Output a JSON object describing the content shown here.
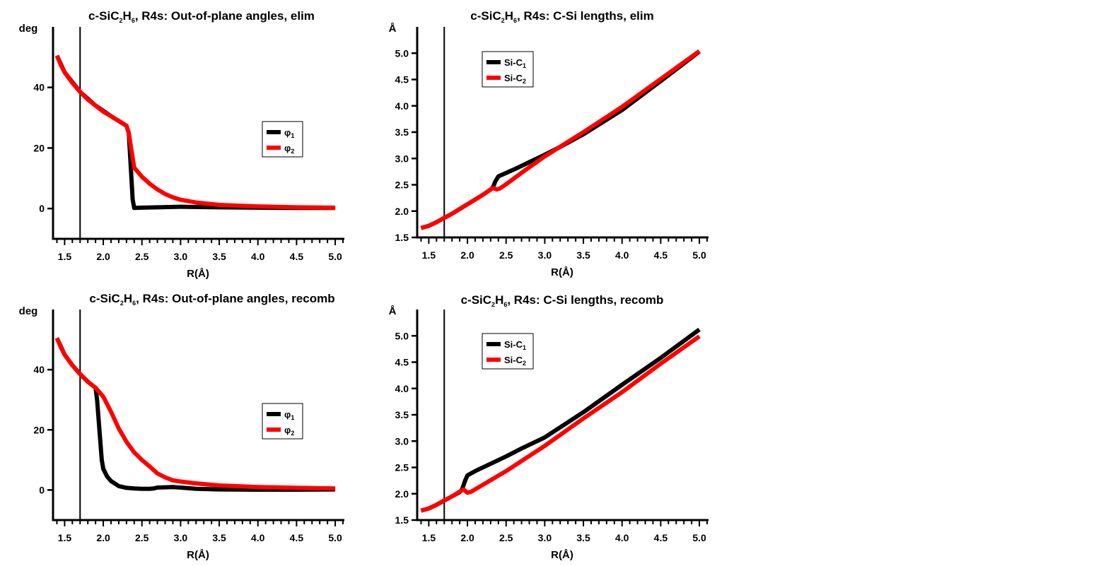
{
  "colors": {
    "series_black": "#000000",
    "series_red": "#ff0000",
    "axis": "#000000"
  },
  "chart_data": [
    {
      "id": "p1",
      "type": "line",
      "title": [
        {
          "t": "c-SiC"
        },
        {
          "t": "2",
          "sub": true
        },
        {
          "t": "H"
        },
        {
          "t": "6",
          "sub": true
        },
        {
          "t": ", R4s: Out-of-plane angles, elim"
        }
      ],
      "xlabel": "R(Å)",
      "ylabel": "deg",
      "xlim": [
        1.35,
        5.1
      ],
      "ylim": [
        -10,
        60
      ],
      "xticks": [
        "1.5",
        "2.0",
        "2.5",
        "3.0",
        "3.5",
        "4.0",
        "4.5",
        "5.0"
      ],
      "yticks": [
        "0",
        "20",
        "40"
      ],
      "vline": 1.7,
      "legend": {
        "placement": "center-right",
        "entries": [
          {
            "t": "φ",
            "sub": "1"
          },
          {
            "t": "φ",
            "sub": "2"
          }
        ]
      },
      "series": [
        {
          "name": "φ1",
          "color": "#000000",
          "x": [
            1.4,
            1.5,
            1.7,
            1.9,
            2.1,
            2.3,
            2.33,
            2.36,
            2.38,
            2.4,
            2.5,
            2.7,
            3.0,
            3.5,
            4.0,
            4.5,
            5.0
          ],
          "y": [
            50.5,
            45,
            38.5,
            34,
            30.5,
            27.3,
            25,
            12,
            3,
            0.2,
            0.3,
            0.4,
            0.6,
            0.4,
            0.3,
            0.2,
            0.2
          ]
        },
        {
          "name": "φ2",
          "color": "#ff0000",
          "x": [
            1.4,
            1.45,
            1.5,
            1.6,
            1.7,
            1.8,
            1.9,
            2.0,
            2.1,
            2.2,
            2.3,
            2.33,
            2.36,
            2.4,
            2.5,
            2.6,
            2.7,
            2.8,
            2.9,
            3.0,
            3.2,
            3.5,
            4.0,
            4.5,
            5.0
          ],
          "y": [
            50.5,
            47.5,
            45,
            41.5,
            38.5,
            36,
            34,
            32,
            30.5,
            29,
            27.3,
            25,
            20,
            13.5,
            10.5,
            8.2,
            6.3,
            4.8,
            3.7,
            2.9,
            2,
            1.2,
            0.7,
            0.4,
            0.3
          ]
        }
      ]
    },
    {
      "id": "p2",
      "type": "line",
      "title": [
        {
          "t": "c-SiC"
        },
        {
          "t": "2",
          "sub": true
        },
        {
          "t": "H"
        },
        {
          "t": "6",
          "sub": true
        },
        {
          "t": ", R4s: C-Si lengths, elim"
        }
      ],
      "xlabel": "R(Å)",
      "ylabel": "Å",
      "xlim": [
        1.35,
        5.1
      ],
      "ylim": [
        1.5,
        5.5
      ],
      "xticks": [
        "1.5",
        "2.0",
        "2.5",
        "3.0",
        "3.5",
        "4.0",
        "4.5",
        "5.0"
      ],
      "yticks": [
        "1.5",
        "2.0",
        "2.5",
        "3.0",
        "3.5",
        "4.0",
        "4.5",
        "5.0"
      ],
      "vline": 1.7,
      "legend": {
        "placement": "top-left",
        "entries": [
          {
            "t": "Si-C",
            "sub": "1"
          },
          {
            "t": "Si-C",
            "sub": "2"
          }
        ]
      },
      "series": [
        {
          "name": "Si-C1",
          "color": "#000000",
          "x": [
            1.4,
            1.5,
            1.6,
            1.7,
            1.8,
            1.9,
            2.0,
            2.1,
            2.2,
            2.3,
            2.33,
            2.36,
            2.4,
            2.6,
            2.8,
            3.0,
            3.2,
            3.5,
            4.0,
            4.5,
            5.0
          ],
          "y": [
            1.68,
            1.72,
            1.79,
            1.87,
            1.95,
            2.04,
            2.13,
            2.22,
            2.31,
            2.41,
            2.45,
            2.56,
            2.66,
            2.79,
            2.93,
            3.07,
            3.22,
            3.46,
            3.92,
            4.47,
            5.03
          ]
        },
        {
          "name": "Si-C2",
          "color": "#ff0000",
          "x": [
            1.4,
            1.5,
            1.6,
            1.7,
            1.8,
            1.9,
            2.0,
            2.1,
            2.2,
            2.3,
            2.33,
            2.38,
            2.42,
            2.5,
            2.75,
            3.0,
            3.5,
            4.0,
            4.5,
            5.0
          ],
          "y": [
            1.68,
            1.72,
            1.79,
            1.87,
            1.95,
            2.04,
            2.13,
            2.22,
            2.31,
            2.41,
            2.44,
            2.41,
            2.43,
            2.51,
            2.78,
            3.04,
            3.5,
            3.98,
            4.51,
            5.04
          ]
        }
      ]
    },
    {
      "id": "p3",
      "type": "line",
      "title": [
        {
          "t": "c-SiC"
        },
        {
          "t": "2",
          "sub": true
        },
        {
          "t": "H"
        },
        {
          "t": "6",
          "sub": true
        },
        {
          "t": ", R4s: Out-of-plane angles, recomb"
        }
      ],
      "xlabel": "R(Å)",
      "ylabel": "deg",
      "xlim": [
        1.35,
        5.1
      ],
      "ylim": [
        -10,
        60
      ],
      "xticks": [
        "1.5",
        "2.0",
        "2.5",
        "3.0",
        "3.5",
        "4.0",
        "4.5",
        "5.0"
      ],
      "yticks": [
        "0",
        "20",
        "40"
      ],
      "vline": 1.7,
      "legend": {
        "placement": "center-right",
        "entries": [
          {
            "t": "φ",
            "sub": "1"
          },
          {
            "t": "φ",
            "sub": "2"
          }
        ]
      },
      "series": [
        {
          "name": "φ1",
          "color": "#000000",
          "x": [
            1.4,
            1.5,
            1.6,
            1.7,
            1.8,
            1.9,
            1.92,
            1.95,
            1.98,
            2.0,
            2.05,
            2.1,
            2.2,
            2.3,
            2.4,
            2.5,
            2.6,
            2.65,
            2.7,
            2.8,
            2.9,
            3.0,
            3.2,
            3.5,
            4.0,
            4.5,
            5.0
          ],
          "y": [
            50.5,
            45,
            41.5,
            38.5,
            36,
            34,
            30,
            20,
            10,
            7,
            4.5,
            3,
            1.3,
            0.7,
            0.5,
            0.4,
            0.4,
            0.5,
            0.8,
            0.9,
            1,
            0.8,
            0.4,
            0.2,
            0.1,
            0.1,
            0.2
          ]
        },
        {
          "name": "φ2",
          "color": "#ff0000",
          "x": [
            1.4,
            1.45,
            1.5,
            1.6,
            1.7,
            1.8,
            1.9,
            2.0,
            2.1,
            2.2,
            2.3,
            2.4,
            2.5,
            2.6,
            2.7,
            2.8,
            2.9,
            3.0,
            3.2,
            3.5,
            4.0,
            4.5,
            5.0
          ],
          "y": [
            50.5,
            47.5,
            45,
            41.5,
            38.5,
            36,
            34,
            31,
            26,
            20.5,
            16,
            12.5,
            10,
            7.8,
            5.5,
            4.2,
            3.2,
            2.8,
            2.2,
            1.5,
            1,
            0.7,
            0.5
          ]
        }
      ]
    },
    {
      "id": "p4",
      "type": "line",
      "title": [
        {
          "t": "c-SiC"
        },
        {
          "t": "2",
          "sub": true
        },
        {
          "t": "H"
        },
        {
          "t": "6",
          "sub": true
        },
        {
          "t": ", R4s: C-Si lengths, recomb"
        }
      ],
      "xlabel": "R(Å)",
      "ylabel": "Å",
      "xlim": [
        1.35,
        5.1
      ],
      "ylim": [
        1.5,
        5.5
      ],
      "xticks": [
        "1.5",
        "2.0",
        "2.5",
        "3.0",
        "3.5",
        "4.0",
        "4.5",
        "5.0"
      ],
      "yticks": [
        "1.5",
        "2.0",
        "2.5",
        "3.0",
        "3.5",
        "4.0",
        "4.5",
        "5.0"
      ],
      "vline": 1.7,
      "legend": {
        "placement": "top-left",
        "entries": [
          {
            "t": "Si-C",
            "sub": "1"
          },
          {
            "t": "Si-C",
            "sub": "2"
          }
        ]
      },
      "series": [
        {
          "name": "Si-C1",
          "color": "#000000",
          "x": [
            1.4,
            1.5,
            1.6,
            1.7,
            1.8,
            1.9,
            1.93,
            1.97,
            2.0,
            2.1,
            2.3,
            2.5,
            2.7,
            3.0,
            3.5,
            4.0,
            4.5,
            5.0
          ],
          "y": [
            1.68,
            1.72,
            1.79,
            1.87,
            1.95,
            2.03,
            2.08,
            2.25,
            2.35,
            2.43,
            2.57,
            2.71,
            2.86,
            3.07,
            3.55,
            4.07,
            4.58,
            5.12
          ]
        },
        {
          "name": "Si-C2",
          "color": "#ff0000",
          "x": [
            1.4,
            1.5,
            1.6,
            1.7,
            1.8,
            1.9,
            1.95,
            2.0,
            2.05,
            2.2,
            2.5,
            3.0,
            3.5,
            4.0,
            4.5,
            5.0
          ],
          "y": [
            1.68,
            1.72,
            1.79,
            1.87,
            1.95,
            2.04,
            2.08,
            2.02,
            2.04,
            2.17,
            2.43,
            2.91,
            3.43,
            3.93,
            4.47,
            4.99
          ]
        }
      ]
    }
  ]
}
